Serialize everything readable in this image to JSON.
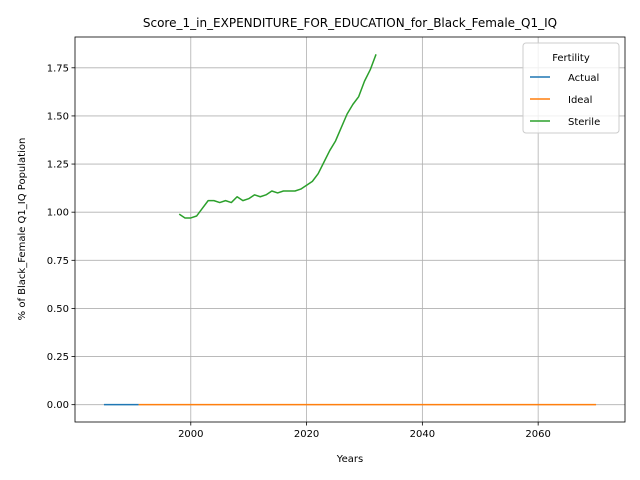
{
  "chart_data": {
    "type": "line",
    "title": "Score_1_in_EXPENDITURE_FOR_EDUCATION_for_Black_Female_Q1_IQ",
    "xlabel": "Years",
    "ylabel": "% of Black_Female Q1_IQ Population",
    "xlim": [
      1980,
      2075
    ],
    "ylim": [
      -0.09,
      1.91
    ],
    "xticks": [
      2000,
      2020,
      2040,
      2060
    ],
    "yticks": [
      0.0,
      0.25,
      0.5,
      0.75,
      1.0,
      1.25,
      1.5,
      1.75
    ],
    "xtick_labels": [
      "2000",
      "2020",
      "2040",
      "2060"
    ],
    "ytick_labels": [
      "0.00",
      "0.25",
      "0.50",
      "0.75",
      "1.00",
      "1.25",
      "1.50",
      "1.75"
    ],
    "grid": true,
    "legend": {
      "title": "Fertility",
      "placement": "top-right"
    },
    "series": [
      {
        "name": "Actual",
        "color": "#1f77b4",
        "x": [
          1985,
          1990,
          1991
        ],
        "y": [
          0,
          0,
          0
        ]
      },
      {
        "name": "Ideal",
        "color": "#ff7f0e",
        "x": [
          1991,
          2000,
          2010,
          2020,
          2030,
          2040,
          2050,
          2060,
          2070
        ],
        "y": [
          0,
          0,
          0,
          0,
          0,
          0,
          0,
          0,
          0
        ]
      },
      {
        "name": "Sterile",
        "color": "#2ca02c",
        "x": [
          1998,
          1999,
          2000,
          2001,
          2002,
          2003,
          2004,
          2005,
          2006,
          2007,
          2008,
          2009,
          2010,
          2011,
          2012,
          2013,
          2014,
          2015,
          2016,
          2017,
          2018,
          2019,
          2020,
          2021,
          2022,
          2023,
          2024,
          2025,
          2026,
          2027,
          2028,
          2029,
          2030,
          2031,
          2032
        ],
        "y": [
          0.99,
          0.97,
          0.97,
          0.98,
          1.02,
          1.06,
          1.06,
          1.05,
          1.06,
          1.05,
          1.08,
          1.06,
          1.07,
          1.09,
          1.08,
          1.09,
          1.11,
          1.1,
          1.11,
          1.11,
          1.11,
          1.12,
          1.14,
          1.16,
          1.2,
          1.26,
          1.32,
          1.37,
          1.44,
          1.51,
          1.56,
          1.6,
          1.68,
          1.74,
          1.82
        ]
      }
    ]
  }
}
